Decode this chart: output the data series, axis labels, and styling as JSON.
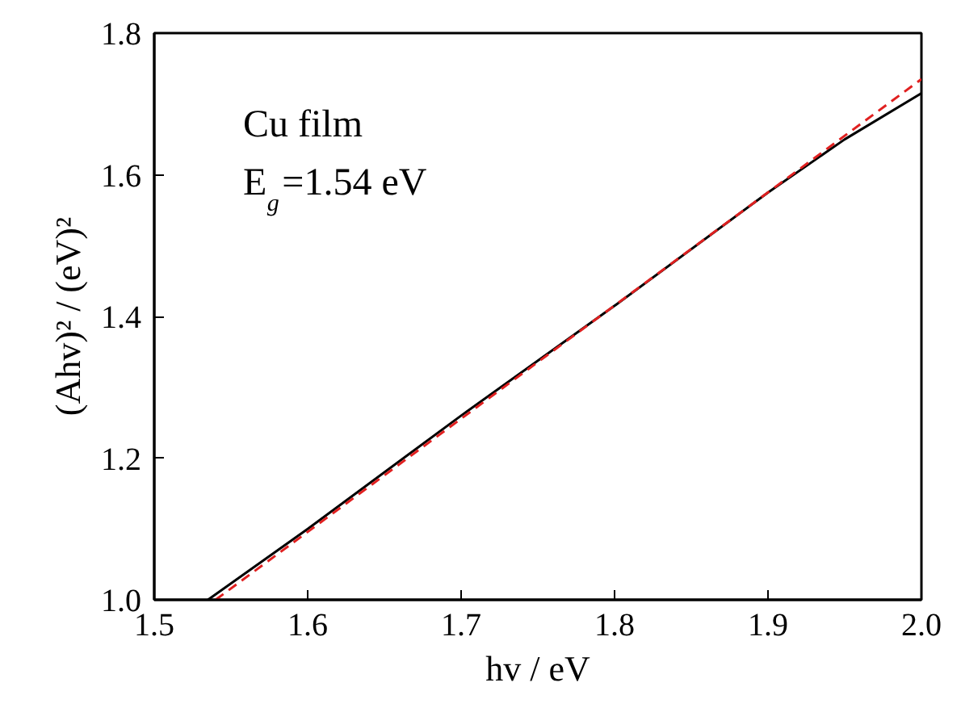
{
  "chart_data": {
    "type": "line",
    "xlabel": "hv / eV",
    "ylabel": "(Ahv)² / (eV)²",
    "xlim": [
      1.5,
      2.0
    ],
    "ylim": [
      1.0,
      1.8
    ],
    "xticks": [
      1.5,
      1.6,
      1.7,
      1.8,
      1.9,
      {
        "value": 2.0,
        "label": "2.0"
      }
    ],
    "yticks": [
      {
        "value": 1.0,
        "label": "1.0"
      },
      1.2,
      1.4,
      1.6,
      1.8
    ],
    "grid": false,
    "series": [
      {
        "color": "#000000",
        "line_style": "solid",
        "x": [
          1.535,
          1.6,
          1.7,
          1.8,
          1.9,
          1.95,
          2.0
        ],
        "values": [
          1.0,
          1.1,
          1.26,
          1.415,
          1.575,
          1.65,
          1.715
        ]
      },
      {
        "color": "#e02020",
        "line_style": "dashed",
        "x": [
          1.54,
          2.0
        ],
        "values": [
          1.0,
          1.735
        ]
      }
    ],
    "annotations": [
      "Cu film",
      "E$_{g}$=1.54 eV"
    ]
  }
}
